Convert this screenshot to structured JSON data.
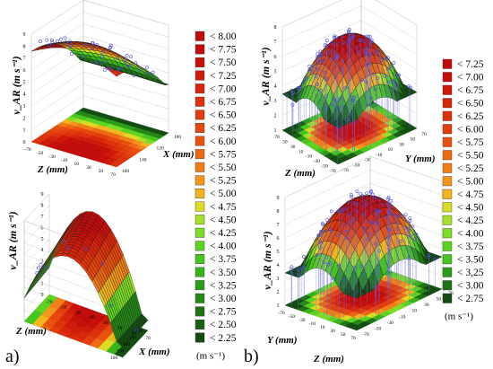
{
  "panel_labels": [
    "a)",
    "b)"
  ],
  "legend_a": {
    "levels": [
      "< 8.00",
      "< 7.75",
      "< 7.50",
      "< 7.25",
      "< 7.00",
      "< 6.75",
      "< 6.50",
      "< 6.25",
      "< 6.00",
      "< 5.75",
      "< 5.50",
      "< 5.25",
      "< 5.00",
      "< 4.75",
      "< 4.50",
      "< 4.25",
      "< 4.00",
      "< 3.75",
      "< 3.50",
      "< 3.25",
      "< 3.00",
      "< 2.75",
      "< 2.50",
      "< 2.25"
    ],
    "colors": [
      "#c10a0a",
      "#c10a0a",
      "#c70f0a",
      "#cf1a09",
      "#d8250a",
      "#dd310a",
      "#e23d0a",
      "#e5470c",
      "#e9520e",
      "#ed6a12",
      "#f07e16",
      "#f4951b",
      "#f2b51d",
      "#dbdb22",
      "#a7e028",
      "#7cdc26",
      "#5cd321",
      "#46c51d",
      "#37b319",
      "#2b9e17",
      "#248816",
      "#1e7214",
      "#195e12",
      "#134c10"
    ],
    "unit": "(m s⁻¹)"
  },
  "legend_b": {
    "levels": [
      "< 7.25",
      "< 7.00",
      "< 6.75",
      "< 6.50",
      "< 6.25",
      "< 6.00",
      "< 5.75",
      "< 5.50",
      "< 5.25",
      "< 5.00",
      "< 4.75",
      "< 4.50",
      "< 4.25",
      "< 4.00",
      "< 3.75",
      "< 3.50",
      "< 3,25",
      "< 3.00",
      "< 2.75"
    ],
    "colors": [
      "#c10a0a",
      "#c70f0a",
      "#cf1a09",
      "#d8250a",
      "#dd310a",
      "#e23d0a",
      "#e9520e",
      "#ed6a12",
      "#f07e16",
      "#f4951b",
      "#f2b51d",
      "#dbdb22",
      "#a7e028",
      "#7cdc26",
      "#5cd321",
      "#46c51d",
      "#2b9e17",
      "#1e7214",
      "#134c10"
    ],
    "unit": "(m s⁻¹)"
  },
  "chart_data": [
    {
      "type": "surface3d",
      "panel": "a) top",
      "zlabel": "v_AR (m s⁻¹)",
      "xlabel": "Z (mm)",
      "ylabel": "X (mm)",
      "zticks": [
        "0",
        "1",
        "2",
        "3",
        "4",
        "5",
        "6",
        "7",
        "8",
        "9"
      ],
      "xticks": [
        "-70",
        "-50",
        "-30",
        "-10",
        "10",
        "30",
        "50",
        "70"
      ],
      "yticks": [
        "160",
        "140",
        "120",
        "100"
      ],
      "surface": {
        "peak": 8.0,
        "min": 2.5,
        "shape": "ridge along Z, maximal near X = 160 mm"
      }
    },
    {
      "type": "surface3d",
      "panel": "a) bottom",
      "zlabel": "v_AR (m s⁻¹)",
      "xlabel": "Z (mm)",
      "ylabel": "X (mm)",
      "zticks": [
        "0",
        "1",
        "2",
        "3",
        "4",
        "5",
        "6",
        "7",
        "8",
        "9"
      ],
      "xticks": [
        "-70",
        "-50",
        "-30",
        "-10",
        "10",
        "30",
        "50",
        "70"
      ],
      "yticks": [
        "120",
        "130",
        "140",
        "150",
        "160"
      ],
      "surface": {
        "peak": 8.0,
        "min": 2.25,
        "shape": "ridge along X, maximal near Z = 0 mm"
      }
    },
    {
      "type": "surface3d",
      "panel": "b) top",
      "zlabel": "v_AR (m s⁻¹)",
      "xlabel": "Z (mm)",
      "ylabel": "Y (mm)",
      "zticks": [
        "1",
        "2",
        "3",
        "4",
        "5",
        "6",
        "7",
        "8"
      ],
      "xticks": [
        "70",
        "50",
        "30",
        "10",
        "-10",
        "-30",
        "-50",
        "-70"
      ],
      "yticks": [
        "-70",
        "-50",
        "-30",
        "-10",
        "10",
        "30",
        "50",
        "70"
      ],
      "surface": {
        "peak": 7.25,
        "min": 2.75,
        "shape": "dome, maximal near Z = 0, Y = 0"
      }
    },
    {
      "type": "surface3d",
      "panel": "b) bottom",
      "zlabel": "v_AR (m s⁻¹)",
      "xlabel": "Z (mm)",
      "ylabel": "Y (mm)",
      "zticks": [
        "1",
        "2",
        "3",
        "4",
        "5",
        "6",
        "7",
        "8",
        "9"
      ],
      "xticks": [
        "-70",
        "-50",
        "-30",
        "-10",
        "10",
        "30",
        "50",
        "70"
      ],
      "yticks": [
        "-70",
        "-50",
        "-30",
        "-10",
        "10",
        "30",
        "50",
        "70"
      ],
      "surface": {
        "peak": 7.25,
        "min": 2.75,
        "shape": "dome, maximal near Z = 0, Y = 0"
      }
    }
  ]
}
